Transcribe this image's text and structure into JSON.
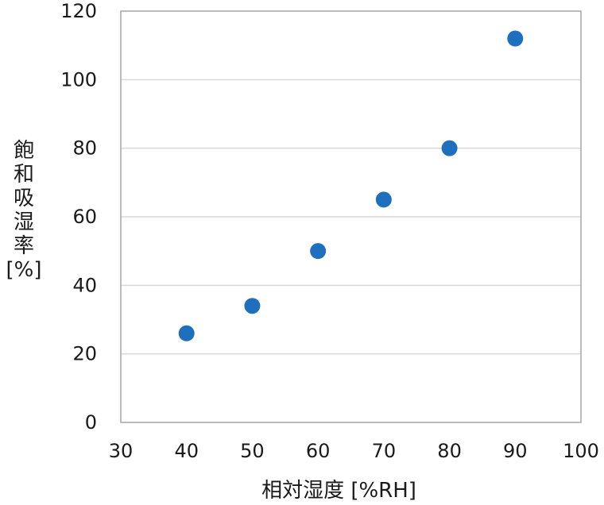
{
  "chart_data": {
    "type": "scatter",
    "title": "",
    "xlabel": "相対湿度 [%RH]",
    "ylabel_lines": [
      "飽",
      "和",
      "吸",
      "湿",
      "率",
      "[%]"
    ],
    "xlim": [
      30,
      100
    ],
    "ylim": [
      0,
      120
    ],
    "x_ticks": [
      "30",
      "40",
      "50",
      "60",
      "70",
      "80",
      "90",
      "100"
    ],
    "y_ticks": [
      "0",
      "20",
      "40",
      "60",
      "80",
      "100",
      "120"
    ],
    "grid": "horizontal",
    "series": [
      {
        "color": "#1f6fbf",
        "x": [
          40,
          50,
          60,
          70,
          80,
          90
        ],
        "y": [
          26,
          34,
          50,
          65,
          80,
          112
        ]
      }
    ]
  }
}
